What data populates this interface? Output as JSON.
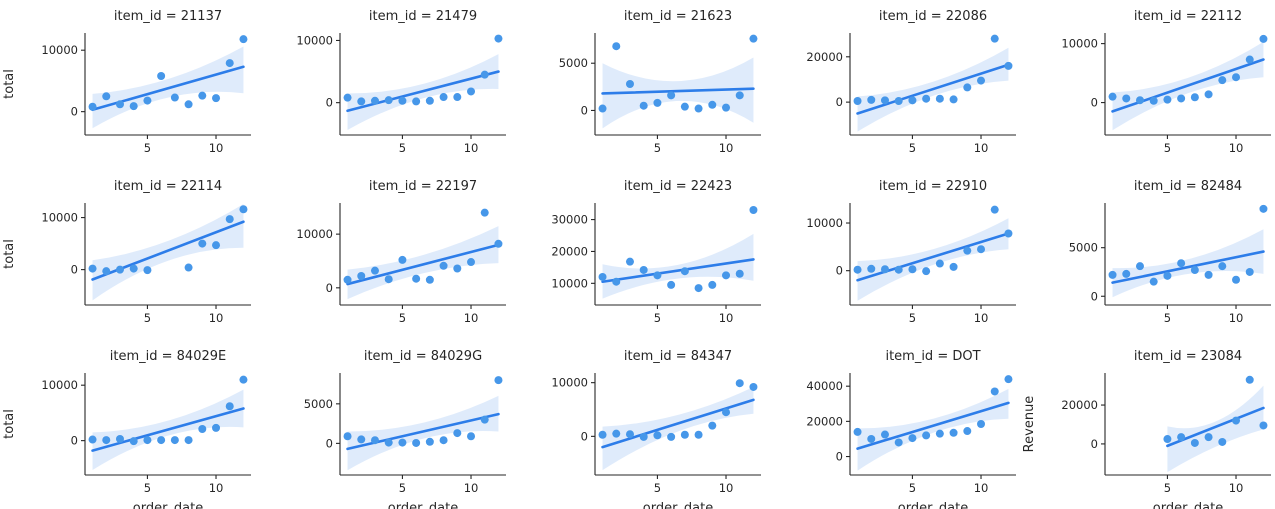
{
  "chart_data": {
    "type": "scatter",
    "description": "seaborn lmplot facet grid: scatter points with linear regression line and confidence band, 3 rows x 5 columns",
    "grid": {
      "rows": 3,
      "cols": 5
    },
    "shared": {
      "xlabel": "order_date",
      "xticks": [
        5,
        10
      ],
      "xlim": [
        0.45,
        12.55
      ],
      "legend": "none",
      "grid_lines": false
    },
    "colors": {
      "dot": "#4697e9",
      "line": "#2d7de9",
      "band": "rgba(77,144,232,0.18)",
      "spine": "#262626",
      "text": "#262626"
    },
    "facets": [
      {
        "title": "item_id = 21137",
        "ylabel": "total",
        "xlabel": null,
        "x": [
          1,
          2,
          3,
          4,
          5,
          6,
          7,
          8,
          9,
          10,
          11,
          12
        ],
        "y": [
          800,
          2500,
          1200,
          900,
          1800,
          5800,
          2300,
          1200,
          2600,
          2200,
          7900,
          11800
        ],
        "yticks": [
          0,
          10000
        ],
        "ylim": [
          -3800,
          12800
        ],
        "line": {
          "x": [
            1,
            12
          ],
          "y": [
            300,
            7300
          ]
        },
        "band": {
          "x": [
            1,
            6.5,
            12
          ],
          "upper": [
            2900,
            5300,
            10600
          ],
          "lower": [
            -2700,
            2300,
            3000
          ]
        }
      },
      {
        "title": "item_id = 21479",
        "ylabel": null,
        "xlabel": null,
        "x": [
          1,
          2,
          3,
          4,
          5,
          6,
          7,
          8,
          9,
          10,
          11,
          12
        ],
        "y": [
          800,
          200,
          300,
          400,
          300,
          200,
          300,
          900,
          900,
          1800,
          4500,
          10300
        ],
        "yticks": [
          0,
          10000
        ],
        "ylim": [
          -5200,
          11200
        ],
        "line": {
          "x": [
            1,
            12
          ],
          "y": [
            -1300,
            5000
          ]
        },
        "band": {
          "x": [
            1,
            6.5,
            12
          ],
          "upper": [
            1500,
            3000,
            7800
          ],
          "lower": [
            -4400,
            700,
            2200
          ]
        }
      },
      {
        "title": "item_id = 21623",
        "ylabel": null,
        "xlabel": null,
        "x": [
          1,
          2,
          3,
          4,
          5,
          6,
          7,
          8,
          9,
          10,
          11,
          12
        ],
        "y": [
          200,
          6800,
          2800,
          500,
          800,
          1600,
          400,
          200,
          600,
          300,
          1600,
          7600
        ],
        "yticks": [
          0,
          5000
        ],
        "ylim": [
          -2600,
          8200
        ],
        "line": {
          "x": [
            1,
            12
          ],
          "y": [
            1800,
            2300
          ]
        },
        "band": {
          "x": [
            1,
            6.5,
            12
          ],
          "upper": [
            5000,
            3100,
            5600
          ],
          "lower": [
            -1900,
            1000,
            -1300
          ]
        }
      },
      {
        "title": "item_id = 22086",
        "ylabel": null,
        "xlabel": null,
        "x": [
          1,
          2,
          3,
          4,
          5,
          6,
          7,
          8,
          9,
          10,
          11,
          12
        ],
        "y": [
          500,
          1000,
          800,
          500,
          800,
          1500,
          1500,
          1200,
          6500,
          9500,
          28000,
          16000
        ],
        "yticks": [
          0,
          20000
        ],
        "ylim": [
          -14500,
          30500
        ],
        "line": {
          "x": [
            1,
            12
          ],
          "y": [
            -5000,
            16500
          ]
        },
        "band": {
          "x": [
            1,
            6.5,
            12
          ],
          "upper": [
            2500,
            9000,
            24000
          ],
          "lower": [
            -13000,
            2800,
            9500
          ]
        }
      },
      {
        "title": "item_id = 22112",
        "ylabel": null,
        "xlabel": null,
        "x": [
          1,
          2,
          3,
          4,
          5,
          6,
          7,
          8,
          9,
          10,
          11,
          12
        ],
        "y": [
          1000,
          700,
          400,
          300,
          500,
          700,
          900,
          1400,
          3800,
          4300,
          7300,
          10800
        ],
        "yticks": [
          0,
          10000
        ],
        "ylim": [
          -5500,
          11800
        ],
        "line": {
          "x": [
            1,
            12
          ],
          "y": [
            -1500,
            7300
          ]
        },
        "band": {
          "x": [
            1,
            6.5,
            12
          ],
          "upper": [
            1700,
            4200,
            10300
          ],
          "lower": [
            -4700,
            1600,
            4300
          ]
        }
      },
      {
        "title": "item_id = 22114",
        "ylabel": "total",
        "xlabel": null,
        "x": [
          1,
          2,
          3,
          4,
          5,
          8,
          9,
          10,
          11,
          12
        ],
        "y": [
          200,
          -300,
          0,
          200,
          -100,
          400,
          5000,
          4700,
          9700,
          11600
        ],
        "yticks": [
          0,
          10000
        ],
        "ylim": [
          -6800,
          12800
        ],
        "line": {
          "x": [
            1,
            12
          ],
          "y": [
            -1900,
            9200
          ]
        },
        "band": {
          "x": [
            1,
            6.5,
            12
          ],
          "upper": [
            1800,
            5500,
            12600
          ],
          "lower": [
            -5900,
            1700,
            4200
          ]
        }
      },
      {
        "title": "item_id = 22197",
        "ylabel": null,
        "xlabel": null,
        "x": [
          1,
          2,
          3,
          4,
          5,
          6,
          7,
          8,
          9,
          10,
          11,
          12
        ],
        "y": [
          1500,
          2200,
          3200,
          1600,
          5200,
          1700,
          1500,
          4100,
          3600,
          4800,
          14000,
          8200
        ],
        "yticks": [
          0,
          10000
        ],
        "ylim": [
          -3200,
          15800
        ],
        "line": {
          "x": [
            1,
            12
          ],
          "y": [
            700,
            8000
          ]
        },
        "band": {
          "x": [
            1,
            6.5,
            12
          ],
          "upper": [
            3400,
            6100,
            11500
          ],
          "lower": [
            -2100,
            2700,
            4600
          ]
        }
      },
      {
        "title": "item_id = 22423",
        "ylabel": null,
        "xlabel": null,
        "x": [
          1,
          2,
          3,
          4,
          5,
          6,
          7,
          8,
          9,
          10,
          11,
          12
        ],
        "y": [
          12000,
          10500,
          16800,
          14200,
          12500,
          9500,
          13800,
          8500,
          9500,
          12500,
          13000,
          33000
        ],
        "yticks": [
          10000,
          20000,
          30000
        ],
        "ylim": [
          3200,
          35200
        ],
        "line": {
          "x": [
            1,
            12
          ],
          "y": [
            10500,
            17500
          ]
        },
        "band": {
          "x": [
            1,
            6.5,
            12
          ],
          "upper": [
            16000,
            15800,
            25500
          ],
          "lower": [
            5200,
            11500,
            10800
          ]
        }
      },
      {
        "title": "item_id = 22910",
        "ylabel": null,
        "xlabel": null,
        "x": [
          1,
          2,
          3,
          4,
          5,
          6,
          7,
          8,
          9,
          10,
          11,
          12
        ],
        "y": [
          200,
          400,
          300,
          200,
          300,
          -100,
          1500,
          800,
          4200,
          4500,
          12800,
          7800
        ],
        "yticks": [
          0,
          10000
        ],
        "ylim": [
          -7200,
          14200
        ],
        "line": {
          "x": [
            1,
            12
          ],
          "y": [
            -2000,
            7800
          ]
        },
        "band": {
          "x": [
            1,
            6.5,
            12
          ],
          "upper": [
            2000,
            4500,
            11000
          ],
          "lower": [
            -6300,
            1200,
            4500
          ]
        }
      },
      {
        "title": "item_id = 82484",
        "ylabel": null,
        "xlabel": null,
        "x": [
          1,
          2,
          3,
          4,
          5,
          6,
          7,
          8,
          9,
          10,
          11,
          12
        ],
        "y": [
          2200,
          2300,
          3100,
          1500,
          2100,
          3400,
          2700,
          2200,
          3100,
          1700,
          2500,
          9000
        ],
        "yticks": [
          0,
          5000
        ],
        "ylim": [
          -900,
          9600
        ],
        "line": {
          "x": [
            1,
            12
          ],
          "y": [
            1400,
            4600
          ]
        },
        "band": {
          "x": [
            1,
            6.5,
            12
          ],
          "upper": [
            2900,
            3800,
            6900
          ],
          "lower": [
            -100,
            2300,
            2300
          ]
        }
      },
      {
        "title": "item_id = 84029E",
        "ylabel": "total",
        "xlabel": "order_date",
        "x": [
          1,
          2,
          3,
          4,
          5,
          6,
          7,
          8,
          9,
          10,
          11,
          12
        ],
        "y": [
          200,
          100,
          300,
          -100,
          100,
          100,
          100,
          100,
          2100,
          2300,
          6200,
          11000
        ],
        "yticks": [
          0,
          10000
        ],
        "ylim": [
          -6200,
          12200
        ],
        "line": {
          "x": [
            1,
            12
          ],
          "y": [
            -1800,
            5800
          ]
        },
        "band": {
          "x": [
            1,
            6.5,
            12
          ],
          "upper": [
            1500,
            3600,
            9200
          ],
          "lower": [
            -5300,
            900,
            2400
          ]
        }
      },
      {
        "title": "item_id = 84029G",
        "ylabel": null,
        "xlabel": "order_date",
        "x": [
          1,
          2,
          3,
          4,
          5,
          6,
          7,
          8,
          9,
          10,
          11,
          12
        ],
        "y": [
          900,
          500,
          400,
          100,
          100,
          50,
          200,
          400,
          1300,
          900,
          3000,
          8000
        ],
        "yticks": [
          0,
          5000
        ],
        "ylim": [
          -4000,
          8900
        ],
        "line": {
          "x": [
            1,
            12
          ],
          "y": [
            -700,
            3700
          ]
        },
        "band": {
          "x": [
            1,
            6.5,
            12
          ],
          "upper": [
            1500,
            2600,
            6000
          ],
          "lower": [
            -3400,
            600,
            1500
          ]
        }
      },
      {
        "title": "item_id = 84347",
        "ylabel": null,
        "xlabel": "order_date",
        "x": [
          1,
          2,
          3,
          4,
          5,
          6,
          7,
          8,
          9,
          10,
          11,
          12
        ],
        "y": [
          300,
          500,
          400,
          -100,
          200,
          -100,
          300,
          300,
          2000,
          4500,
          9900,
          9200
        ],
        "yticks": [
          0,
          10000
        ],
        "ylim": [
          -7200,
          11800
        ],
        "line": {
          "x": [
            1,
            12
          ],
          "y": [
            -2000,
            6800
          ]
        },
        "band": {
          "x": [
            1,
            6.5,
            12
          ],
          "upper": [
            1800,
            4000,
            9200
          ],
          "lower": [
            -6300,
            900,
            4200
          ]
        }
      },
      {
        "title": "item_id = DOT",
        "ylabel": null,
        "xlabel": "order_date",
        "x": [
          1,
          2,
          3,
          4,
          5,
          6,
          7,
          8,
          9,
          10,
          11,
          12
        ],
        "y": [
          14000,
          10000,
          12500,
          8000,
          10500,
          12000,
          13000,
          13500,
          14500,
          18500,
          37000,
          44000
        ],
        "yticks": [
          0,
          20000,
          40000
        ],
        "ylim": [
          -10500,
          47500
        ],
        "line": {
          "x": [
            1,
            12
          ],
          "y": [
            4500,
            30500
          ]
        },
        "band": {
          "x": [
            1,
            6.5,
            12
          ],
          "upper": [
            16000,
            21500,
            38500
          ],
          "lower": [
            -8000,
            13500,
            21500
          ]
        }
      },
      {
        "title": "item_id = 23084",
        "ylabel": "Revenue",
        "xlabel": "order_date",
        "x": [
          5,
          6,
          7,
          8,
          9,
          10,
          11,
          12
        ],
        "y": [
          2500,
          3500,
          500,
          3500,
          1000,
          12000,
          33000,
          9500
        ],
        "yticks": [
          0,
          20000
        ],
        "ylim": [
          -16000,
          36500
        ],
        "line": {
          "x": [
            5,
            12
          ],
          "y": [
            -1000,
            18500
          ]
        },
        "band": {
          "x": [
            5,
            8.5,
            12
          ],
          "upper": [
            9000,
            11500,
            30000
          ],
          "lower": [
            -14500,
            -1500,
            7500
          ]
        }
      }
    ]
  }
}
